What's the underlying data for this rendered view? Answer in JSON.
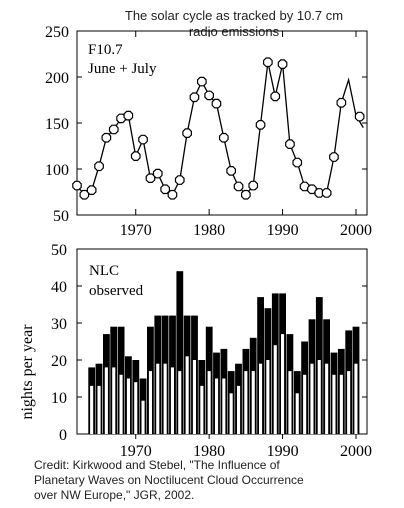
{
  "chart_data": [
    {
      "type": "line",
      "title": "The solar cycle as tracked by 10.7 cm radio emissions",
      "title_lines": [
        "The solar cycle as tracked by 10.7 cm",
        "radio emissions"
      ],
      "annotation_lines": [
        "F10.7",
        "June + July"
      ],
      "xlim": [
        1962,
        2001.5
      ],
      "ylim": [
        50,
        250
      ],
      "x_ticks": [
        1970,
        1980,
        1990,
        2000
      ],
      "y_ticks": [
        50,
        100,
        150,
        200,
        250
      ],
      "x": [
        1962,
        1963,
        1964,
        1965,
        1966,
        1967,
        1968,
        1969,
        1970,
        1971,
        1972,
        1973,
        1974,
        1975,
        1976,
        1977,
        1978,
        1979,
        1980,
        1981,
        1982,
        1983,
        1984,
        1985,
        1986,
        1987,
        1988,
        1989,
        1990,
        1991,
        1992,
        1993,
        1994,
        1995,
        1996,
        1997,
        1998,
        1999,
        2000,
        2001
      ],
      "y": [
        82,
        72,
        77,
        103,
        134,
        143,
        155,
        158,
        114,
        132,
        90,
        95,
        78,
        72,
        88,
        139,
        178,
        195,
        180,
        171,
        134,
        98,
        81,
        72,
        82,
        148,
        216,
        179,
        214,
        127,
        107,
        81,
        78,
        74,
        74,
        113,
        172,
        197,
        158,
        145
      ],
      "marker_x": [
        1962,
        1963,
        1964,
        1965,
        1966,
        1967,
        1968,
        1969,
        1970,
        1971,
        1972,
        1973,
        1974,
        1975,
        1976,
        1977,
        1978,
        1979,
        1980,
        1981,
        1982,
        1983,
        1984,
        1985,
        1986,
        1987,
        1988,
        1989,
        1990,
        1991,
        1992,
        1993,
        1994,
        1995,
        1996,
        1997,
        1998,
        2000.5
      ],
      "marker_y": [
        82,
        72,
        77,
        103,
        134,
        143,
        155,
        158,
        114,
        132,
        90,
        95,
        78,
        72,
        88,
        139,
        178,
        195,
        180,
        171,
        134,
        98,
        81,
        72,
        82,
        148,
        216,
        179,
        214,
        127,
        107,
        81,
        78,
        74,
        74,
        113,
        172,
        157
      ]
    },
    {
      "type": "bar",
      "ylabel": "nights per year",
      "annotation_lines": [
        "NLC",
        "observed"
      ],
      "xlim": [
        1962,
        2001.5
      ],
      "ylim": [
        0,
        50
      ],
      "x_ticks": [
        1970,
        1980,
        1990,
        2000
      ],
      "y_ticks": [
        0,
        10,
        20,
        30,
        40,
        50
      ],
      "categories": [
        1964,
        1965,
        1966,
        1967,
        1968,
        1969,
        1970,
        1971,
        1972,
        1973,
        1974,
        1975,
        1976,
        1977,
        1978,
        1979,
        1980,
        1981,
        1982,
        1983,
        1984,
        1985,
        1986,
        1987,
        1988,
        1989,
        1990,
        1991,
        1992,
        1993,
        1994,
        1995,
        1996,
        1997,
        1998,
        1999,
        2000
      ],
      "series": [
        {
          "values": [
            18,
            19,
            27,
            29,
            29,
            21,
            20,
            15,
            29,
            32,
            32,
            32,
            44,
            32,
            32,
            20,
            29,
            22,
            23,
            17,
            19,
            23,
            26,
            37,
            34,
            38,
            38,
            27,
            17,
            25,
            31,
            37,
            31,
            22,
            23,
            28,
            29
          ]
        },
        {
          "values": [
            13,
            13,
            18,
            18,
            16,
            15,
            14,
            9,
            17,
            19,
            19,
            18,
            17,
            21,
            20,
            13,
            17,
            15,
            15,
            11,
            13,
            17,
            17,
            19,
            20,
            24,
            27,
            17,
            11,
            16,
            19,
            20,
            19,
            16,
            16,
            17,
            19
          ]
        }
      ]
    }
  ],
  "credit_lines": [
    "Credit: Kirkwood and Stebel, \"The Influence of",
    "Planetary Waves on Noctilucent Cloud Occurrence",
    "over NW Europe,\" JGR, 2002."
  ]
}
